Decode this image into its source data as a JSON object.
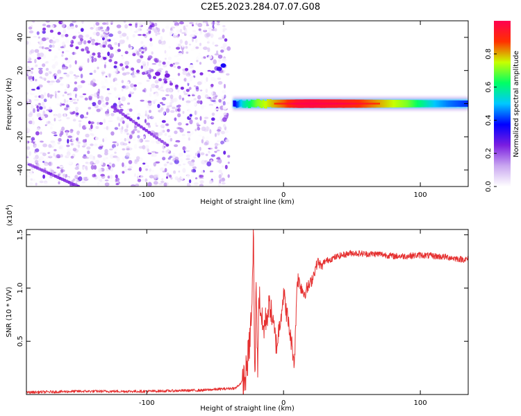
{
  "title": "C2E5.2023.284.07.07.G08",
  "chart_data": [
    {
      "type": "heatmap",
      "xlabel": "Height of straight line (km)",
      "ylabel": "Frequency (Hz)",
      "xlim": [
        -188,
        135
      ],
      "ylim": [
        -50,
        50
      ],
      "xticks": [
        -100,
        0,
        100
      ],
      "yticks": [
        -40,
        -20,
        0,
        20,
        40
      ],
      "grid": false,
      "noise_region_x": [
        -188,
        -40
      ],
      "noise_lines": [
        {
          "from": [
            -185,
            -37
          ],
          "to": [
            -150,
            -50
          ]
        },
        {
          "from": [
            -175,
            45
          ],
          "to": [
            -60,
            18
          ]
        },
        {
          "from": [
            -125,
            -2
          ],
          "to": [
            -85,
            -25
          ]
        },
        {
          "from": [
            -155,
            35
          ],
          "to": [
            -70,
            8
          ]
        }
      ],
      "signal_hops": [
        {
          "x": -92,
          "y": 18,
          "amplitude": 0.25
        },
        {
          "x": -85,
          "y": 17,
          "amplitude": 0.25
        },
        {
          "x": -47,
          "y": 21,
          "amplitude": 0.3
        },
        {
          "x": -44,
          "y": 23,
          "amplitude": 0.35
        }
      ],
      "signal_band": {
        "x_range": [
          -37,
          135
        ],
        "y_center": 0,
        "half_width_hz": 2.5,
        "amplitude_x": [
          -37,
          -30,
          -20,
          -10,
          0,
          10,
          20,
          30,
          40,
          50,
          60,
          70,
          80,
          90,
          100,
          110,
          120,
          135
        ],
        "amplitude_y": [
          0.35,
          0.55,
          0.7,
          0.78,
          0.85,
          0.95,
          0.97,
          0.95,
          0.93,
          0.9,
          0.85,
          0.8,
          0.75,
          0.7,
          0.6,
          0.5,
          0.45,
          0.4
        ]
      },
      "colorbar": {
        "label": "Normalized spectral amplitude",
        "range": [
          0.0,
          1.0
        ],
        "ticks": [
          "0.0",
          "0.2",
          "0.4",
          "0.6",
          "0.8"
        ],
        "colors": [
          "#ffffff",
          "#c9a6f0",
          "#7a1de0",
          "#0000ff",
          "#00c8ff",
          "#00ff64",
          "#c8ff00",
          "#ff3000",
          "#ff0050"
        ]
      }
    },
    {
      "type": "line",
      "xlabel": "Height of straight line (km)",
      "ylabel": "SNR (10 * V/V)",
      "y_scale_label": "(x10",
      "y_scale_exp": "4",
      "xlim": [
        -188,
        135
      ],
      "ylim": [
        0.0,
        1.55
      ],
      "xticks": [
        -100,
        0,
        100
      ],
      "yticks": [
        "0.5",
        "1.0",
        "1.5"
      ],
      "legend": "none",
      "series": [
        {
          "color": "#e53030",
          "x": [
            -188,
            -150,
            -100,
            -60,
            -35,
            -28,
            -25,
            -23,
            -22,
            -21,
            -20,
            -19,
            -18,
            -15,
            -10,
            -5,
            0,
            5,
            8,
            10,
            15,
            20,
            25,
            28,
            30,
            40,
            50,
            60,
            70,
            80,
            90,
            100,
            110,
            120,
            130,
            135
          ],
          "y": [
            0.02,
            0.03,
            0.03,
            0.04,
            0.06,
            0.15,
            0.45,
            0.85,
            1.55,
            0.05,
            1.15,
            0.2,
            0.95,
            0.6,
            0.85,
            0.45,
            0.95,
            0.55,
            0.3,
            1.1,
            0.95,
            1.05,
            1.25,
            1.2,
            1.25,
            1.3,
            1.33,
            1.32,
            1.32,
            1.3,
            1.3,
            1.31,
            1.3,
            1.29,
            1.27,
            1.27
          ]
        }
      ]
    }
  ]
}
